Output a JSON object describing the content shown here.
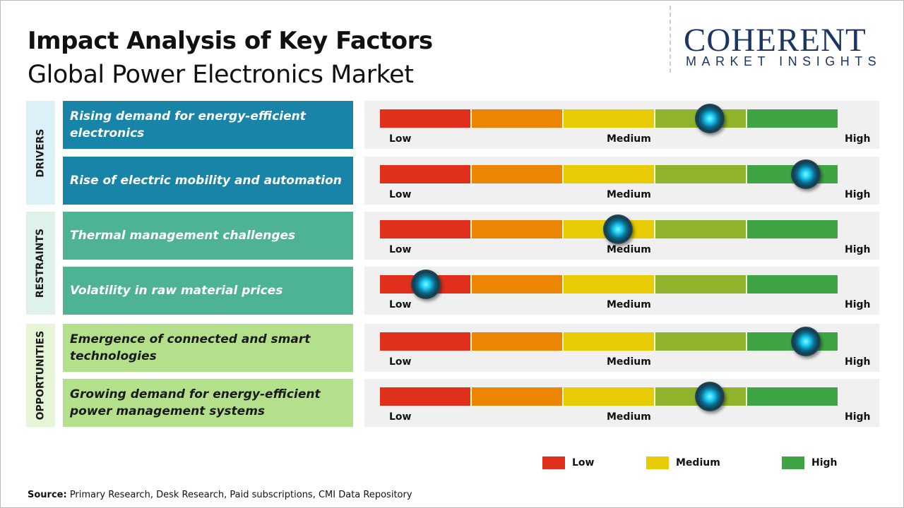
{
  "header": {
    "title": "Impact Analysis of Key Factors",
    "subtitle": "Global Power Electronics Market"
  },
  "logo": {
    "line1": "COHERENT",
    "line2": "MARKET INSIGHTS"
  },
  "scale_labels": {
    "low": "Low",
    "medium": "Medium",
    "high": "High"
  },
  "segment_colors": [
    "#e0301b",
    "#ec8404",
    "#e6cb05",
    "#8fb32a",
    "#3fa544"
  ],
  "categories": [
    {
      "label": "DRIVERS",
      "label_bg": "#dcf0f8",
      "factor_bg": "#1784a8",
      "factor_text": "#ffffff"
    },
    {
      "label": "RESTRAINTS",
      "label_bg": "#dff2ea",
      "factor_bg": "#4db394",
      "factor_text": "#ffffff"
    },
    {
      "label": "OPPORTUNITIES",
      "label_bg": "#e6f5d6",
      "factor_bg": "#b4e08c",
      "factor_text": "#1a1a1a"
    }
  ],
  "factors": [
    {
      "category": 0,
      "text": "Rising demand for energy-efficient electronics",
      "impact": 0.72
    },
    {
      "category": 0,
      "text": "Rise of electric mobility and automation",
      "impact": 0.93
    },
    {
      "category": 1,
      "text": "Thermal management  challenges",
      "impact": 0.52
    },
    {
      "category": 1,
      "text": "Volatility  in raw material  prices",
      "impact": 0.1
    },
    {
      "category": 2,
      "text": "Emergence  of connected and smart technologies",
      "impact": 0.93
    },
    {
      "category": 2,
      "text": "Growing demand for energy-efficient  power management systems",
      "impact": 0.72
    }
  ],
  "legend": [
    {
      "label": "Low",
      "color": "#e0301b"
    },
    {
      "label": "Medium",
      "color": "#e6cb05"
    },
    {
      "label": "High",
      "color": "#3fa544"
    }
  ],
  "source": {
    "label": "Source:",
    "text": " Primary Research, Desk Research, Paid subscriptions, CMI Data Repository"
  }
}
